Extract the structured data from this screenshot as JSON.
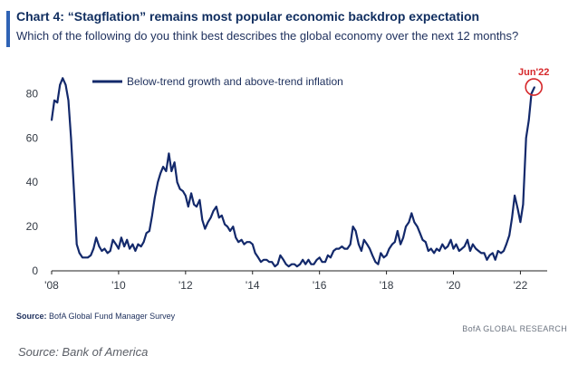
{
  "header": {
    "title": "Chart 4: “Stagflation” remains most popular economic backdrop expectation",
    "subtitle": "Which of the following do you think best describes the global economy over the next 12 months?"
  },
  "footer": {
    "source_label": "Source:",
    "source_text": "BofA Global Fund Manager Survey",
    "brand": "BofA GLOBAL RESEARCH",
    "caption": "Source: Bank of America"
  },
  "colors": {
    "line": "#13296b",
    "accent": "#2f63b5",
    "annotation": "#d6282b"
  },
  "chart_data": {
    "type": "line",
    "title": "Chart 4: “Stagflation” remains most popular economic backdrop expectation",
    "subtitle": "Which of the following do you think best describes the global economy over the next 12 months?",
    "xlabel": "",
    "ylabel": "",
    "xlim": [
      2008,
      2022.8
    ],
    "ylim": [
      0,
      90
    ],
    "grid": false,
    "legend_position": "top-left",
    "y_ticks": [
      0,
      20,
      40,
      60,
      80
    ],
    "x_ticks": [
      {
        "value": 2008,
        "label": "'08"
      },
      {
        "value": 2010,
        "label": "'10"
      },
      {
        "value": 2012,
        "label": "'12"
      },
      {
        "value": 2014,
        "label": "'14"
      },
      {
        "value": 2016,
        "label": "'16"
      },
      {
        "value": 2018,
        "label": "'18"
      },
      {
        "value": 2020,
        "label": "'20"
      },
      {
        "value": 2022,
        "label": "'22"
      }
    ],
    "annotation": {
      "label": "Jun'22",
      "x": 2022.4,
      "y": 83
    },
    "series": [
      {
        "name": "Below-trend growth and above-trend inflation",
        "x": [
          2008.0,
          2008.08,
          2008.17,
          2008.25,
          2008.33,
          2008.42,
          2008.5,
          2008.58,
          2008.67,
          2008.75,
          2008.83,
          2008.92,
          2009.0,
          2009.08,
          2009.17,
          2009.25,
          2009.33,
          2009.42,
          2009.5,
          2009.58,
          2009.67,
          2009.75,
          2009.83,
          2009.92,
          2010.0,
          2010.08,
          2010.17,
          2010.25,
          2010.33,
          2010.42,
          2010.5,
          2010.58,
          2010.67,
          2010.75,
          2010.83,
          2010.92,
          2011.0,
          2011.08,
          2011.17,
          2011.25,
          2011.33,
          2011.42,
          2011.5,
          2011.58,
          2011.67,
          2011.75,
          2011.83,
          2011.92,
          2012.0,
          2012.08,
          2012.17,
          2012.25,
          2012.33,
          2012.42,
          2012.5,
          2012.58,
          2012.67,
          2012.75,
          2012.83,
          2012.92,
          2013.0,
          2013.08,
          2013.17,
          2013.25,
          2013.33,
          2013.42,
          2013.5,
          2013.58,
          2013.67,
          2013.75,
          2013.83,
          2013.92,
          2014.0,
          2014.08,
          2014.17,
          2014.25,
          2014.33,
          2014.42,
          2014.5,
          2014.58,
          2014.67,
          2014.75,
          2014.83,
          2014.92,
          2015.0,
          2015.08,
          2015.17,
          2015.25,
          2015.33,
          2015.42,
          2015.5,
          2015.58,
          2015.67,
          2015.75,
          2015.83,
          2015.92,
          2016.0,
          2016.08,
          2016.17,
          2016.25,
          2016.33,
          2016.42,
          2016.5,
          2016.58,
          2016.67,
          2016.75,
          2016.83,
          2016.92,
          2017.0,
          2017.08,
          2017.17,
          2017.25,
          2017.33,
          2017.42,
          2017.5,
          2017.58,
          2017.67,
          2017.75,
          2017.83,
          2017.92,
          2018.0,
          2018.08,
          2018.17,
          2018.25,
          2018.33,
          2018.42,
          2018.5,
          2018.58,
          2018.67,
          2018.75,
          2018.83,
          2018.92,
          2019.0,
          2019.08,
          2019.17,
          2019.25,
          2019.33,
          2019.42,
          2019.5,
          2019.58,
          2019.67,
          2019.75,
          2019.83,
          2019.92,
          2020.0,
          2020.08,
          2020.17,
          2020.25,
          2020.33,
          2020.42,
          2020.5,
          2020.58,
          2020.67,
          2020.75,
          2020.83,
          2020.92,
          2021.0,
          2021.08,
          2021.17,
          2021.25,
          2021.33,
          2021.42,
          2021.5,
          2021.58,
          2021.67,
          2021.75,
          2021.83,
          2021.92,
          2022.0,
          2022.08,
          2022.17,
          2022.25,
          2022.33,
          2022.42
        ],
        "values": [
          68,
          77,
          76,
          84,
          87,
          84,
          77,
          60,
          35,
          12,
          8,
          6,
          6,
          6,
          7,
          10,
          15,
          11,
          9,
          10,
          8,
          9,
          14,
          12,
          10,
          15,
          11,
          14,
          10,
          12,
          9,
          12,
          11,
          13,
          17,
          18,
          25,
          33,
          40,
          44,
          47,
          45,
          53,
          45,
          49,
          40,
          37,
          36,
          34,
          29,
          35,
          30,
          29,
          32,
          23,
          19,
          22,
          24,
          27,
          29,
          24,
          25,
          21,
          20,
          18,
          20,
          15,
          13,
          14,
          12,
          13,
          13,
          12,
          8,
          6,
          4,
          5,
          5,
          4,
          4,
          2,
          3,
          7,
          5,
          3,
          2,
          3,
          3,
          2,
          3,
          5,
          3,
          5,
          3,
          3,
          5,
          6,
          4,
          4,
          7,
          6,
          9,
          10,
          10,
          11,
          10,
          10,
          12,
          20,
          18,
          12,
          9,
          14,
          12,
          10,
          7,
          4,
          3,
          8,
          6,
          7,
          10,
          12,
          13,
          18,
          12,
          15,
          20,
          22,
          26,
          22,
          20,
          17,
          14,
          13,
          9,
          10,
          8,
          10,
          9,
          12,
          10,
          11,
          14,
          10,
          12,
          9,
          10,
          11,
          14,
          9,
          12,
          10,
          9,
          8,
          8,
          5,
          7,
          8,
          5,
          9,
          8,
          9,
          12,
          16,
          24,
          34,
          28,
          22,
          30,
          60,
          68,
          80,
          83
        ]
      }
    ]
  }
}
